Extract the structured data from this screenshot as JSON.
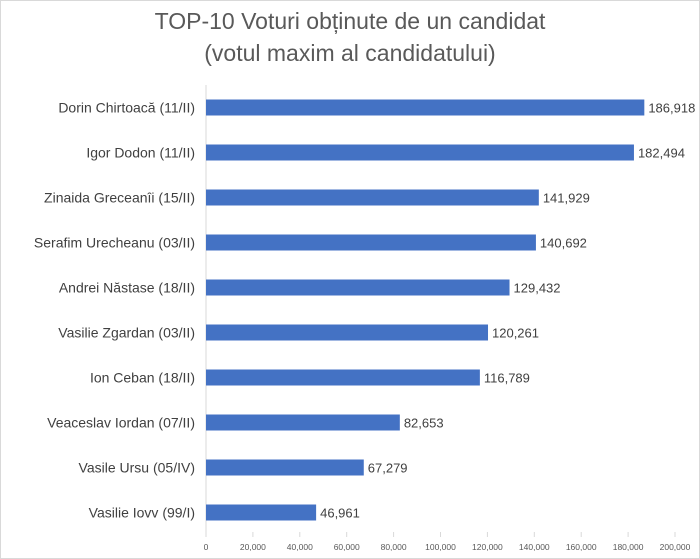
{
  "chart_data": {
    "type": "bar",
    "orientation": "horizontal",
    "title": "TOP-10 Voturi obținute de un candidat",
    "subtitle": "(votul maxim al candidatului)",
    "categories": [
      "Dorin Chirtoacă (11/II)",
      "Igor Dodon (11/II)",
      "Zinaida Greceanîi (15/II)",
      "Serafim Urecheanu (03/II)",
      "Andrei Năstase (18/II)",
      "Vasilie Zgardan (03/II)",
      "Ion Ceban (18/II)",
      "Veaceslav Iordan (07/II)",
      "Vasile Ursu (05/IV)",
      "Vasilie Iovv (99/I)"
    ],
    "values": [
      186918,
      182494,
      141929,
      140692,
      129432,
      120261,
      116789,
      82653,
      67279,
      46961
    ],
    "data_labels": [
      "186,918",
      "182,494",
      "141,929",
      "140,692",
      "129,432",
      "120,261",
      "116,789",
      "82,653",
      "67,279",
      "46,961"
    ],
    "xlim": [
      0,
      200000
    ],
    "x_ticks": [
      "0",
      "20,000",
      "40,000",
      "60,000",
      "80,000",
      "100,000",
      "120,000",
      "140,000",
      "160,000",
      "180,000",
      "200,000"
    ],
    "grid": false,
    "bar_color": "#4472c4"
  }
}
